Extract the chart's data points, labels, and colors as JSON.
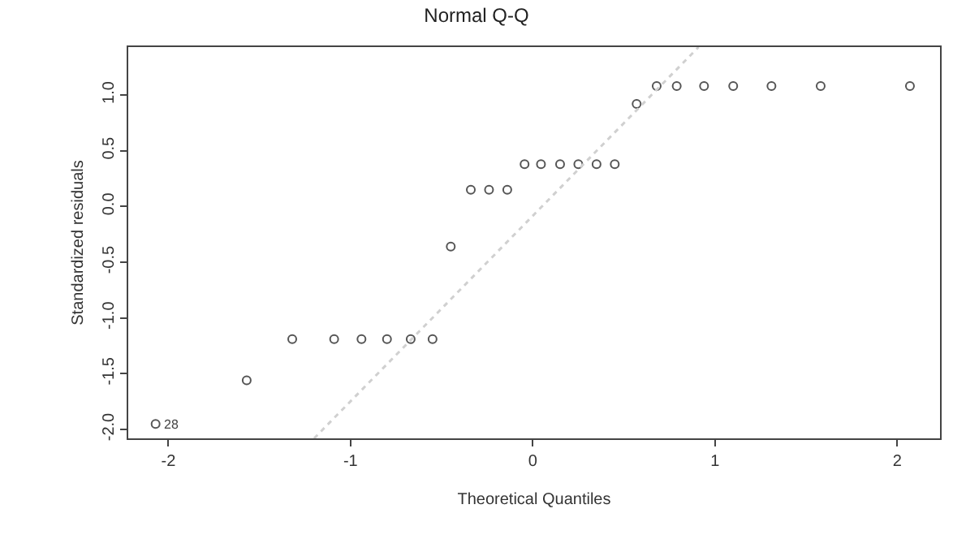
{
  "chart_data": {
    "type": "scatter",
    "title": "Normal Q-Q",
    "xlabel": "Theoretical Quantiles",
    "ylabel": "Standardized residuals",
    "xlim": [
      -2.22,
      2.235
    ],
    "ylim": [
      -2.08,
      1.43
    ],
    "xticks": [
      -2,
      -1,
      0,
      1,
      2
    ],
    "yticks": [
      {
        "value": -2,
        "label": "-2.0"
      },
      -1.5,
      {
        "value": -1,
        "label": "-1.0"
      },
      -0.5,
      {
        "value": 0,
        "label": "0.0"
      },
      0.5,
      {
        "value": 1,
        "label": "1.0"
      }
    ],
    "grid": false,
    "annotations": [
      {
        "text": "28",
        "x": -2.07,
        "y": -1.95
      }
    ],
    "series": [
      {
        "marker": "circle",
        "color": "#555555",
        "x": [
          -2.07,
          -1.57,
          -1.32,
          -1.09,
          -0.94,
          -0.8,
          -0.67,
          -0.55,
          -0.45,
          -0.34,
          -0.24,
          -0.14,
          -0.045,
          0.045,
          0.15,
          0.25,
          0.35,
          0.45,
          0.57,
          0.68,
          0.79,
          0.94,
          1.1,
          1.31,
          1.58,
          2.07
        ],
        "values": [
          -1.95,
          -1.56,
          -1.19,
          -1.19,
          -1.19,
          -1.19,
          -1.19,
          -1.19,
          -0.36,
          0.15,
          0.15,
          0.15,
          0.38,
          0.38,
          0.38,
          0.38,
          0.38,
          0.38,
          0.92,
          1.08,
          1.08,
          1.08,
          1.08,
          1.08,
          1.08,
          1.08
        ]
      },
      {
        "type": "line",
        "color": "#d0d0d0",
        "line_style": "dotted",
        "x": [
          -1.2,
          0.91
        ],
        "values": [
          -2.08,
          1.43
        ]
      }
    ]
  }
}
